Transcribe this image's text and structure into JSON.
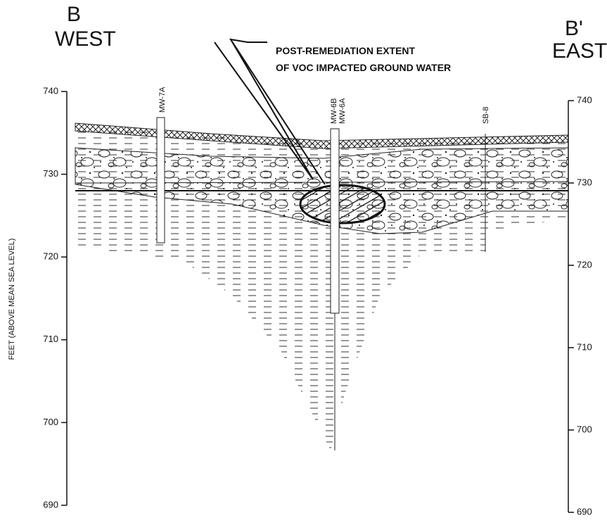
{
  "sections": {
    "left": {
      "letter": "B",
      "direction": "WEST"
    },
    "right": {
      "letter": "B'",
      "direction": "EAST"
    }
  },
  "annotation": {
    "lines": [
      "POST-REMEDIATION EXTENT",
      "OF VOC IMPACTED GROUND WATER"
    ]
  },
  "wells": [
    {
      "label": "MW-7A"
    },
    {
      "label": "MW-6B"
    },
    {
      "label": "MW-6A"
    },
    {
      "label": "SB-8"
    }
  ],
  "axis_label": "FEET (ABOVE MEAN SEA LEVEL)",
  "left_axis": {
    "ylim": [
      690,
      740
    ],
    "ticks": [
      740,
      730,
      720,
      710,
      700,
      690
    ]
  },
  "right_axis": {
    "ylim": [
      690,
      740
    ],
    "ticks": [
      740,
      730,
      720,
      710,
      700,
      690
    ]
  }
}
